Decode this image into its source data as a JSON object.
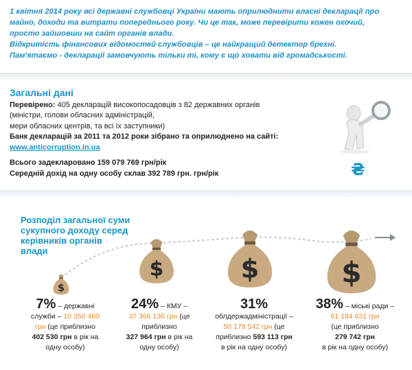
{
  "intro": {
    "line1": "1 квітня 2014 року всі державні службовці України мають оприлюднити власні декларації про",
    "line2": "майно, доходи та витрати попереднього року. Чи це так, може перевірити кожен охочий,",
    "line3": "просто зайшовши на сайт органів влади.",
    "line4": "Відкритість фінансових відомостей службовців – це найкращий детектор брехні.",
    "line5": "Пам'ятаємо - декларації замовчують тільки ті, кому є що ховати від громадськості."
  },
  "general": {
    "title": "Загальні дані",
    "checked_label": "Перевірено:",
    "checked_text": "405 декларацій високопосадовців з 82 державних органів",
    "checked_line2": "(міністри, голови обласних адміністрацій,",
    "checked_line3": "мери обласних центрів, та всі їх заступники)",
    "bank_text": "Банк декларацій за 2011 та 2012 роки зібрано та оприлюднено на сайті:",
    "site": "www.anticorruption.in.ua",
    "total": "Всього задекларовано 159 079 769 грн/рік",
    "average": "Середній дохід на одну особу склав 392 789 грн. грн/рік"
  },
  "currency_symbol": "₴",
  "distribution": {
    "title_l1": "Розподіл загальної суми",
    "title_l2": "сукупного доходу серед",
    "title_l3": "керівників органів",
    "title_l4": "влади",
    "items": [
      {
        "pct": "7%",
        "org_a": " – державні",
        "org_b": "служби – ",
        "amount": "10 350 460",
        "amount_b": "грн",
        "approx": " (це приблизно",
        "per": "402 530 грн",
        "per_tail": " в рік на",
        "tail": "одну особу)"
      },
      {
        "pct": "24%",
        "org_a": " – КМУ –",
        "amount": "37 366 136 грн",
        "approx": " (це",
        "approx2": "приблизно",
        "per": "327 964 грн",
        "per_tail": " в рік на",
        "tail": "одну особу)"
      },
      {
        "pct": "31%",
        "org_a": "облдержадміністрації –",
        "amount": "50 178 542 грн",
        "approx": " (це",
        "approx2": "приблизно ",
        "per": "593 113 грн",
        "tail": "в рік на одну особу)"
      },
      {
        "pct": "38%",
        "org_a": " – міські ради –",
        "amount": "61 184 631 грн",
        "approx": "(це приблизно",
        "per": "279 742 грн",
        "tail": "в рік на одну особу)"
      }
    ]
  },
  "colors": {
    "accent": "#1a95c7",
    "amount": "#e58a2d",
    "bag": "#c9aa80"
  },
  "icons": [
    "magnifier-figure-icon",
    "hryvnia-icon",
    "money-bag-icon",
    "arrow-right-icon"
  ]
}
